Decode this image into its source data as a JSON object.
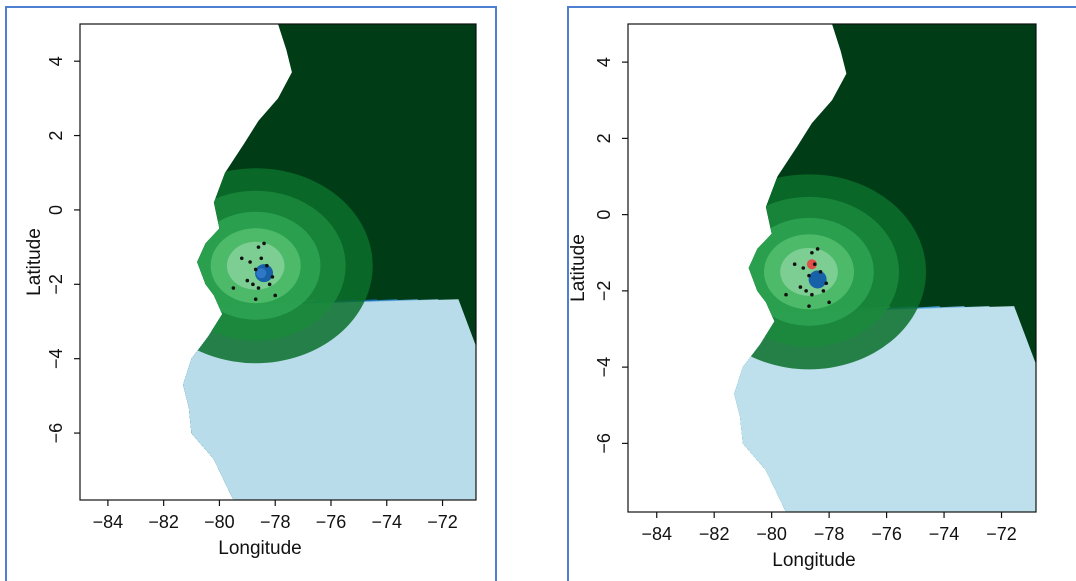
{
  "figure": {
    "panels": [
      {
        "id": "left",
        "xlabel": "Longitude",
        "ylabel": "Latitude",
        "xticks": [
          "−84",
          "−82",
          "−80",
          "−78",
          "−76",
          "−74",
          "−72"
        ],
        "yticks": [
          "4",
          "2",
          "0",
          "−2",
          "−4",
          "−6"
        ],
        "xlim": [
          -85.0,
          -70.8
        ],
        "ylim": [
          -7.8,
          5.0
        ],
        "hotspot_color": "#2f78c8"
      },
      {
        "id": "right",
        "xlabel": "Longitude",
        "ylabel": "Latitude",
        "xticks": [
          "−84",
          "−82",
          "−80",
          "−78",
          "−76",
          "−74",
          "−72"
        ],
        "yticks": [
          "4",
          "2",
          "0",
          "−2",
          "−4",
          "−6"
        ],
        "xlim": [
          -85.0,
          -70.8
        ],
        "ylim": [
          -7.8,
          5.0
        ],
        "hotspot_color": "#e0504a"
      }
    ],
    "colors": {
      "land_dark": "#003d16",
      "greens": [
        "#005a23",
        "#0b6e2c",
        "#1a8a3c",
        "#2ea553",
        "#54be6e",
        "#86d19a"
      ],
      "blues_left": [
        "#b8dce9",
        "#8fc5e1",
        "#5aa6d6",
        "#2e82c3",
        "#1761a8",
        "#0b4388",
        "#08306b"
      ],
      "blues_right": [
        "#bde0ec",
        "#9dd0e6",
        "#6fb5de",
        "#3f95d0",
        "#2377bd"
      ],
      "frame": "#4f7fd0",
      "point_color": "#111111"
    },
    "sample_points": [
      [
        -78.6,
        -1.0
      ],
      [
        -78.4,
        -0.9
      ],
      [
        -78.9,
        -1.4
      ],
      [
        -78.7,
        -1.6
      ],
      [
        -79.0,
        -1.9
      ],
      [
        -78.3,
        -1.5
      ],
      [
        -78.2,
        -2.0
      ],
      [
        -78.0,
        -2.3
      ],
      [
        -78.6,
        -2.1
      ],
      [
        -79.5,
        -2.1
      ],
      [
        -79.2,
        -1.3
      ],
      [
        -78.5,
        -1.3
      ],
      [
        -78.8,
        -2.0
      ],
      [
        -78.1,
        -1.8
      ],
      [
        -78.7,
        -2.4
      ]
    ]
  }
}
